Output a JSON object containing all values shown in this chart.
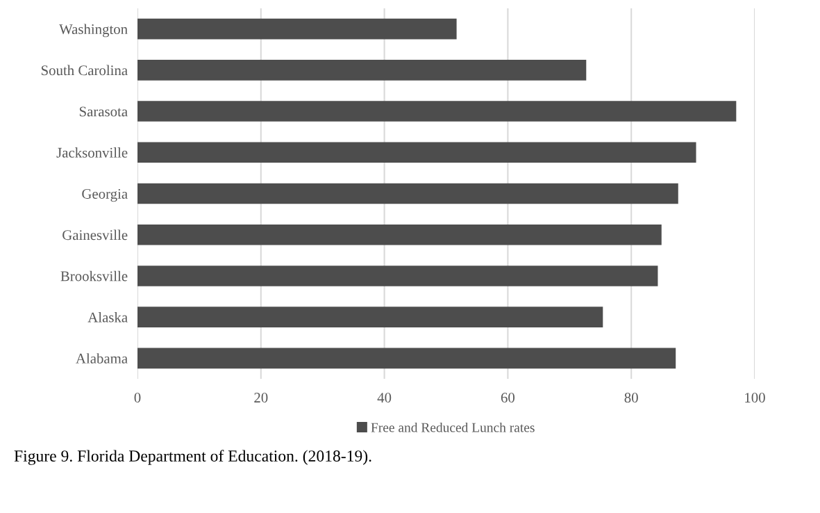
{
  "chart_data": {
    "type": "bar",
    "orientation": "horizontal",
    "categories": [
      "Washington",
      "South Carolina",
      "Sarasota",
      "Jacksonville",
      "Georgia",
      "Gainesville",
      "Brooksville",
      "Alaska",
      "Alabama"
    ],
    "series": [
      {
        "name": "Free and Reduced Lunch rates",
        "color": "#4d4d4d",
        "values": [
          51.7,
          72.7,
          97.0,
          90.5,
          87.6,
          84.9,
          84.3,
          75.4,
          87.2
        ]
      }
    ],
    "xlim": [
      0,
      100
    ],
    "xticks": [
      0,
      20,
      40,
      60,
      80,
      100
    ],
    "grid": "x",
    "legend": "bottom",
    "annotations": [
      "Figure 9. Florida Department of Education. (2018-19)."
    ]
  }
}
